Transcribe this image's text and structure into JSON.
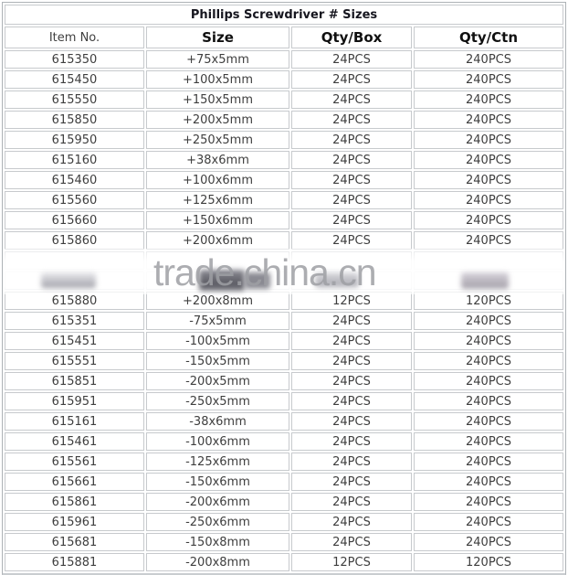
{
  "table": {
    "title": "Phillips Screwdriver # Sizes",
    "columns": [
      "Item No.",
      "Size",
      "Qty/Box",
      "Qty/Ctn"
    ],
    "rows": [
      {
        "item": "615350",
        "size": "+75x5mm",
        "qty_box": "24PCS",
        "qty_ctn": "240PCS",
        "obscured": false
      },
      {
        "item": "615450",
        "size": "+100x5mm",
        "qty_box": "24PCS",
        "qty_ctn": "240PCS",
        "obscured": false
      },
      {
        "item": "615550",
        "size": "+150x5mm",
        "qty_box": "24PCS",
        "qty_ctn": "240PCS",
        "obscured": false
      },
      {
        "item": "615850",
        "size": "+200x5mm",
        "qty_box": "24PCS",
        "qty_ctn": "240PCS",
        "obscured": false
      },
      {
        "item": "615950",
        "size": "+250x5mm",
        "qty_box": "24PCS",
        "qty_ctn": "240PCS",
        "obscured": false
      },
      {
        "item": "615160",
        "size": "+38x6mm",
        "qty_box": "24PCS",
        "qty_ctn": "240PCS",
        "obscured": false
      },
      {
        "item": "615460",
        "size": "+100x6mm",
        "qty_box": "24PCS",
        "qty_ctn": "240PCS",
        "obscured": false
      },
      {
        "item": "615560",
        "size": "+125x6mm",
        "qty_box": "24PCS",
        "qty_ctn": "240PCS",
        "obscured": false
      },
      {
        "item": "615660",
        "size": "+150x6mm",
        "qty_box": "24PCS",
        "qty_ctn": "240PCS",
        "obscured": false
      },
      {
        "item": "615860",
        "size": "+200x6mm",
        "qty_box": "24PCS",
        "qty_ctn": "240PCS",
        "obscured": false
      },
      {
        "item": "",
        "size": "",
        "qty_box": "",
        "qty_ctn": "",
        "obscured": true
      },
      {
        "item": "",
        "size": "",
        "qty_box": "",
        "qty_ctn": "",
        "obscured": true
      },
      {
        "item": "615880",
        "size": "+200x8mm",
        "qty_box": "12PCS",
        "qty_ctn": "120PCS",
        "obscured": false
      },
      {
        "item": "615351",
        "size": "-75x5mm",
        "qty_box": "24PCS",
        "qty_ctn": "240PCS",
        "obscured": false
      },
      {
        "item": "615451",
        "size": "-100x5mm",
        "qty_box": "24PCS",
        "qty_ctn": "240PCS",
        "obscured": false
      },
      {
        "item": "615551",
        "size": "-150x5mm",
        "qty_box": "24PCS",
        "qty_ctn": "240PCS",
        "obscured": false
      },
      {
        "item": "615851",
        "size": "-200x5mm",
        "qty_box": "24PCS",
        "qty_ctn": "240PCS",
        "obscured": false
      },
      {
        "item": "615951",
        "size": "-250x5mm",
        "qty_box": "24PCS",
        "qty_ctn": "240PCS",
        "obscured": false
      },
      {
        "item": "615161",
        "size": "-38x6mm",
        "qty_box": "24PCS",
        "qty_ctn": "240PCS",
        "obscured": false
      },
      {
        "item": "615461",
        "size": "-100x6mm",
        "qty_box": "24PCS",
        "qty_ctn": "240PCS",
        "obscured": false
      },
      {
        "item": "615561",
        "size": "-125x6mm",
        "qty_box": "24PCS",
        "qty_ctn": "240PCS",
        "obscured": false
      },
      {
        "item": "615661",
        "size": "-150x6mm",
        "qty_box": "24PCS",
        "qty_ctn": "240PCS",
        "obscured": false
      },
      {
        "item": "615861",
        "size": "-200x6mm",
        "qty_box": "24PCS",
        "qty_ctn": "240PCS",
        "obscured": false
      },
      {
        "item": "615961",
        "size": "-250x6mm",
        "qty_box": "24PCS",
        "qty_ctn": "240PCS",
        "obscured": false
      },
      {
        "item": "615681",
        "size": "-150x8mm",
        "qty_box": "24PCS",
        "qty_ctn": "240PCS",
        "obscured": false
      },
      {
        "item": "615881",
        "size": "-200x8mm",
        "qty_box": "12PCS",
        "qty_ctn": "120PCS",
        "obscured": false
      }
    ]
  },
  "watermark": {
    "text": "trade.china.cn"
  },
  "colors": {
    "cell_border": "#c7cacd",
    "outer_border": "#adb2b6",
    "bottom_strip": "#c9cdd0",
    "title_text": "#15151e",
    "header_text": "#101010",
    "cell_text": "#3e3e3e",
    "watermark_text": "#9e9fa3"
  }
}
